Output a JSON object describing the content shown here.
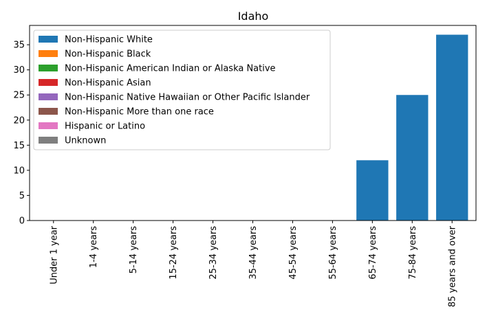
{
  "chart_data": {
    "type": "bar",
    "title": "Idaho",
    "xlabel": "",
    "ylabel": "",
    "ylim": [
      0,
      38.85
    ],
    "yticks": [
      0,
      5,
      10,
      15,
      20,
      25,
      30,
      35
    ],
    "grid": false,
    "legend_position": "upper-left",
    "categories": [
      "Under 1 year",
      "1-4 years",
      "5-14 years",
      "15-24 years",
      "25-34 years",
      "35-44 years",
      "45-54 years",
      "55-64 years",
      "65-74 years",
      "75-84 years",
      "85 years and over"
    ],
    "series": [
      {
        "name": "Non-Hispanic White",
        "color": "#1f77b4",
        "values": [
          0,
          0,
          0,
          0,
          0,
          0,
          0,
          0,
          12,
          25,
          37
        ]
      },
      {
        "name": "Non-Hispanic Black",
        "color": "#ff7f0e",
        "values": [
          0,
          0,
          0,
          0,
          0,
          0,
          0,
          0,
          0,
          0,
          0
        ]
      },
      {
        "name": "Non-Hispanic American Indian or Alaska Native",
        "color": "#2ca02c",
        "values": [
          0,
          0,
          0,
          0,
          0,
          0,
          0,
          0,
          0,
          0,
          0
        ]
      },
      {
        "name": "Non-Hispanic Asian",
        "color": "#d62728",
        "values": [
          0,
          0,
          0,
          0,
          0,
          0,
          0,
          0,
          0,
          0,
          0
        ]
      },
      {
        "name": "Non-Hispanic Native Hawaiian or Other Pacific Islander",
        "color": "#9467bd",
        "values": [
          0,
          0,
          0,
          0,
          0,
          0,
          0,
          0,
          0,
          0,
          0
        ]
      },
      {
        "name": "Non-Hispanic More than one race",
        "color": "#8c564b",
        "values": [
          0,
          0,
          0,
          0,
          0,
          0,
          0,
          0,
          0,
          0,
          0
        ]
      },
      {
        "name": "Hispanic or Latino",
        "color": "#e377c2",
        "values": [
          0,
          0,
          0,
          0,
          0,
          0,
          0,
          0,
          0,
          0,
          0
        ]
      },
      {
        "name": "Unknown",
        "color": "#7f7f7f",
        "values": [
          0,
          0,
          0,
          0,
          0,
          0,
          0,
          0,
          0,
          0,
          0
        ]
      }
    ]
  }
}
